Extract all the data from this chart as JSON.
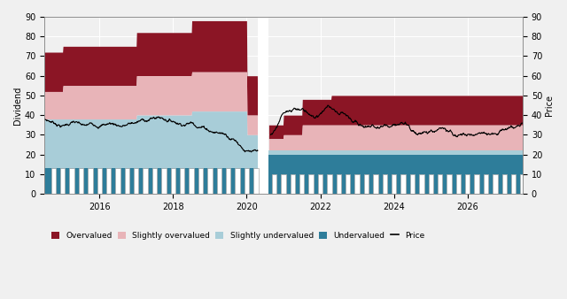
{
  "ylabel_left": "Dividend",
  "ylabel_right": "Price",
  "ylim": [
    0,
    90
  ],
  "xlim": [
    2014.5,
    2027.5
  ],
  "colors": {
    "overvalued": "#8B1525",
    "slightly_overvalued": "#E8B4B8",
    "slightly_undervalued": "#A8CDD8",
    "undervalued": "#2E7D9A",
    "price": "#000000",
    "background": "#F0F0F0",
    "grid": "#FFFFFF"
  },
  "x_ticks": [
    2016,
    2018,
    2020,
    2022,
    2024,
    2026
  ],
  "y_ticks": [
    0,
    10,
    20,
    30,
    40,
    50,
    60,
    70,
    80,
    90
  ],
  "pre2020": {
    "t_start": 2014.5,
    "t_end": 2020.3,
    "breakpoints": [
      2014.5,
      2015.0,
      2016.5,
      2017.0,
      2018.5,
      2019.0,
      2019.5,
      2020.0,
      2020.3
    ],
    "ov_top": [
      72,
      75,
      75,
      82,
      88,
      88,
      88,
      60,
      35
    ],
    "sov_top": [
      52,
      55,
      55,
      60,
      62,
      62,
      62,
      40,
      28
    ],
    "sunder_top": [
      38,
      38,
      38,
      40,
      42,
      42,
      42,
      30,
      22
    ],
    "under_top": [
      13,
      13,
      13,
      13,
      13,
      13,
      13,
      13,
      13
    ]
  },
  "post2020": {
    "t_start": 2020.6,
    "t_end": 2027.5,
    "breakpoints": [
      2020.6,
      2021.0,
      2021.5,
      2022.3,
      2023.5,
      2024.0,
      2027.5
    ],
    "ov_top": [
      35,
      40,
      48,
      50,
      50,
      50,
      50
    ],
    "sov_top": [
      28,
      30,
      35,
      35,
      35,
      35,
      35
    ],
    "sunder_top": [
      22,
      22,
      22,
      22,
      22,
      22,
      22
    ],
    "under_top": [
      20,
      20,
      20,
      20,
      20,
      20,
      20
    ]
  },
  "price_pre": {
    "t": [
      2014.5,
      2015.0,
      2015.3,
      2015.6,
      2016.0,
      2016.3,
      2016.6,
      2017.0,
      2017.3,
      2017.6,
      2017.9,
      2018.2,
      2018.5,
      2018.8,
      2019.1,
      2019.4,
      2019.7,
      2020.0,
      2020.3
    ],
    "v": [
      38,
      35,
      37,
      33,
      34,
      35,
      34,
      35,
      36,
      37,
      36,
      35,
      36,
      35,
      33,
      32,
      30,
      25,
      22
    ]
  },
  "price_post": {
    "t": [
      2020.65,
      2021.0,
      2021.3,
      2021.6,
      2021.9,
      2022.2,
      2022.5,
      2022.8,
      2023.1,
      2023.4,
      2023.7,
      2024.0,
      2024.3,
      2024.6,
      2025.0,
      2025.5,
      2026.0,
      2026.5,
      2027.0,
      2027.5
    ],
    "v": [
      30,
      42,
      44,
      42,
      38,
      43,
      40,
      37,
      35,
      36,
      34,
      34,
      37,
      32,
      33,
      34,
      35,
      35,
      36,
      36
    ]
  },
  "bar_height_pre": 13,
  "bar_height_post": 10,
  "bar_width": 0.13
}
